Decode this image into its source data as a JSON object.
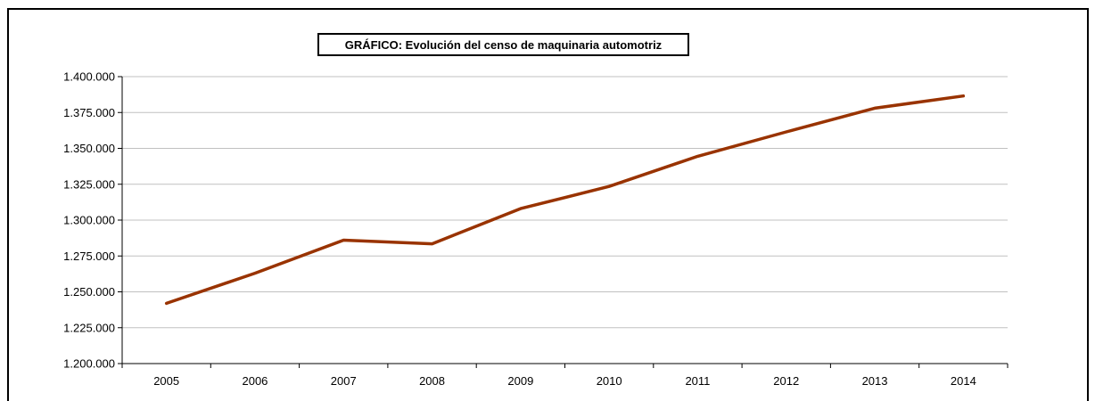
{
  "chart_data": {
    "type": "line",
    "title": "GRÁFICO: Evolución del censo de maquinaria automotriz",
    "xlabel": "",
    "ylabel": "",
    "categories": [
      "2005",
      "2006",
      "2007",
      "2008",
      "2009",
      "2010",
      "2011",
      "2012",
      "2013",
      "2014"
    ],
    "series": [
      {
        "values": [
          1242000,
          1263000,
          1286000,
          1283500,
          1308000,
          1323500,
          1344500,
          1361500,
          1378000,
          1386500
        ]
      }
    ],
    "ylim": [
      1200000,
      1400000
    ],
    "yticks": [
      "1.200.000",
      "1.225.000",
      "1.250.000",
      "1.275.000",
      "1.300.000",
      "1.325.000",
      "1.350.000",
      "1.375.000",
      "1.400.000"
    ],
    "ytick_values": [
      1200000,
      1225000,
      1250000,
      1275000,
      1300000,
      1325000,
      1350000,
      1375000,
      1400000
    ],
    "grid": true,
    "legend": "none",
    "line_color": "#993300",
    "grid_color": "#c0c0c0"
  }
}
